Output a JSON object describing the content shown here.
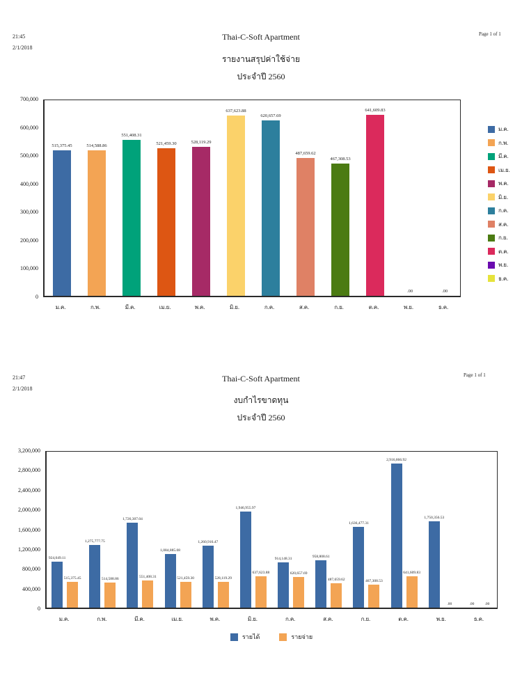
{
  "report1": {
    "time": "21:45",
    "date": "2/1/2018",
    "title": "Thai-C-Soft Apartment",
    "page_label": "Page 1 of 1",
    "subtitle": "รายงานสรุปค่าใช้จ่าย",
    "period": "ประจำปี  2560"
  },
  "report2": {
    "time": "21:47",
    "date": "2/1/2018",
    "title": "Thai-C-Soft Apartment",
    "page_label": "Page 1 of 1",
    "subtitle": "งบกำไรขาดทุน",
    "period": "ประจำปี  2560"
  },
  "chart_data": [
    {
      "type": "bar",
      "title": "รายงานสรุปค่าใช้จ่าย ประจำปี 2560",
      "categories": [
        "ม.ค.",
        "ก.พ.",
        "มี.ค.",
        "เม.ย.",
        "พ.ค.",
        "มิ.ย.",
        "ก.ค.",
        "ส.ค.",
        "ก.ย.",
        "ต.ค.",
        "พ.ย.",
        "ธ.ค."
      ],
      "values": [
        515375.45,
        514588.86,
        551408.31,
        521459.3,
        528119.29,
        637623.88,
        620657.69,
        487659.62,
        467308.53,
        641609.83,
        0,
        0
      ],
      "value_labels": [
        "515,375.45",
        "514,588.86",
        "551,408.31",
        "521,459.30",
        "528,119.29",
        "637,623.88",
        "620,657.69",
        "487,659.62",
        "467,308.53",
        "641,609.83",
        ".00",
        ".00"
      ],
      "bar_colors": [
        "#3D6BA4",
        "#F3A454",
        "#00A27A",
        "#DD5613",
        "#A62A66",
        "#FBD26A",
        "#2D7F9D",
        "#DF8165",
        "#4B7B12",
        "#DB2A5C",
        "#6A0BAF",
        "#E6E33C"
      ],
      "xlabel": "",
      "ylabel": "",
      "ylim": [
        0,
        700000
      ],
      "ytick_step": 100000,
      "yticks": [
        "0",
        "100,000",
        "200,000",
        "300,000",
        "400,000",
        "500,000",
        "600,000",
        "700,000"
      ],
      "grid": false,
      "legend_position": "right"
    },
    {
      "type": "grouped-bar",
      "title": "งบกำไรขาดทุน ประจำปี 2560",
      "categories": [
        "ม.ค.",
        "ก.พ.",
        "มี.ค.",
        "เม.ย.",
        "พ.ค.",
        "มิ.ย.",
        "ก.ค.",
        "ส.ค.",
        "ก.ย.",
        "ต.ค.",
        "พ.ย.",
        "ธ.ค."
      ],
      "series": [
        {
          "name": "รายได้",
          "color": "#3D6BA4",
          "values": [
            924049.11,
            1275777.75,
            1726307.04,
            1084885.08,
            1260916.47,
            1946955.97,
            914148.31,
            958808.61,
            1636477.31,
            2916866.92,
            1750356.53,
            0
          ],
          "value_labels": [
            "924,049.11",
            "1,275,777.75",
            "1,726,307.04",
            "1,084,885.08",
            "1,260,916.47",
            "1,946,955.97",
            "914,148.31",
            "958,808.61",
            "1,636,477.31",
            "2,916,866.92",
            "1,750,356.53",
            ".00"
          ]
        },
        {
          "name": "รายจ่าย",
          "color": "#F3A454",
          "values": [
            515375.45,
            514588.86,
            551408.31,
            521459.3,
            528119.29,
            637623.88,
            620657.69,
            487659.62,
            467308.53,
            641609.83,
            0,
            0
          ],
          "value_labels": [
            "515,375.45",
            "514,588.86",
            "551,408.31",
            "521,459.30",
            "528,119.29",
            "637,623.88",
            "620,657.69",
            "487,659.62",
            "467,308.53",
            "641,609.83",
            ".00",
            ".00"
          ]
        }
      ],
      "xlabel": "",
      "ylabel": "",
      "ylim": [
        0,
        3200000
      ],
      "ytick_step": 400000,
      "yticks": [
        "0",
        "400,000",
        "800,000",
        "1,200,000",
        "1,600,000",
        "2,000,000",
        "2,400,000",
        "2,800,000",
        "3,200,000"
      ],
      "grid": false,
      "legend_position": "bottom"
    }
  ]
}
